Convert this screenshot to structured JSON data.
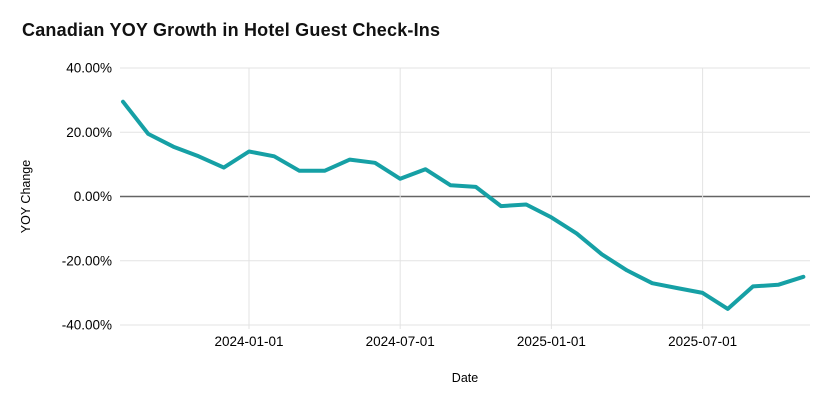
{
  "chart": {
    "title": "Canadian YOY Growth in Hotel Guest Check-Ins",
    "xlabel": "Date",
    "ylabel": "YOY Change"
  },
  "chart_data": {
    "type": "line",
    "title": "Canadian YOY Growth in Hotel Guest Check-Ins",
    "xlabel": "Date",
    "ylabel": "YOY Change",
    "x": [
      "2023-08-01",
      "2023-09-01",
      "2023-10-01",
      "2023-11-01",
      "2023-12-01",
      "2024-01-01",
      "2024-02-01",
      "2024-03-01",
      "2024-04-01",
      "2024-05-01",
      "2024-06-01",
      "2024-07-01",
      "2024-08-01",
      "2024-09-01",
      "2024-10-01",
      "2024-11-01",
      "2024-12-01",
      "2025-01-01",
      "2025-02-01",
      "2025-03-01",
      "2025-04-01",
      "2025-05-01",
      "2025-06-01",
      "2025-07-01",
      "2025-08-01",
      "2025-09-01",
      "2025-10-01",
      "2025-11-01"
    ],
    "values": [
      29.5,
      19.5,
      15.5,
      12.5,
      9,
      14,
      12.5,
      8,
      8,
      11.5,
      10.5,
      5.5,
      8.5,
      3.5,
      3,
      -3,
      -2.5,
      -6.5,
      -11.5,
      -18,
      -23,
      -27,
      -28.5,
      -30,
      -35,
      -28,
      -27.5,
      -25
    ],
    "ylim": [
      -40,
      40
    ],
    "y_ticks": [
      {
        "value": 40,
        "label": "40.00%"
      },
      {
        "value": 20,
        "label": "20.00%"
      },
      {
        "value": 0,
        "label": "0.00%"
      },
      {
        "value": -20,
        "label": "-20.00%"
      },
      {
        "value": -40,
        "label": "-40.00%"
      }
    ],
    "x_tick_labels": [
      "2024-01-01",
      "2024-07-01",
      "2025-01-01",
      "2025-07-01"
    ],
    "grid": true,
    "legend": false,
    "line_color": "#16A0A5",
    "grid_color": "#E3E3E3",
    "zero_line_color": "#646464",
    "text_color": "#000000"
  }
}
